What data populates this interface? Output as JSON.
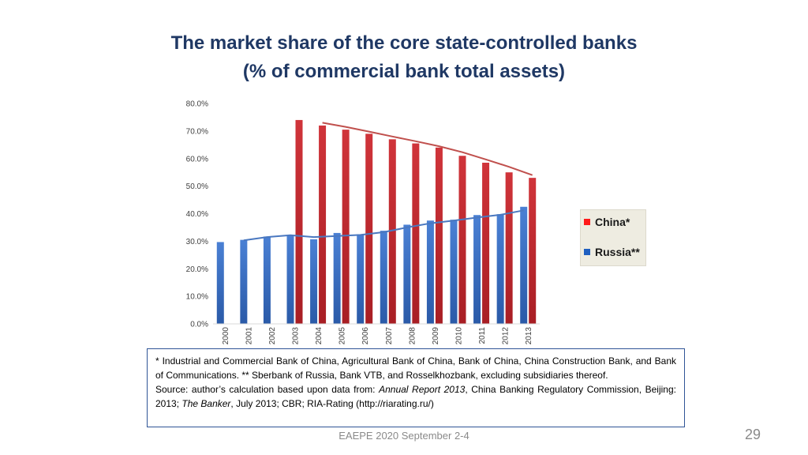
{
  "title": {
    "line1": "The market share of the core state-controlled banks",
    "line2": "(% of commercial bank total assets)"
  },
  "chart_data": {
    "type": "bar",
    "categories": [
      "2000",
      "2001",
      "2002",
      "2003",
      "2004",
      "2005",
      "2006",
      "2007",
      "2008",
      "2009",
      "2010",
      "2011",
      "2012",
      "2013"
    ],
    "series": [
      {
        "name": "Russia**",
        "color": "#3a6fc4",
        "values": [
          29.7,
          30.5,
          31.7,
          32.0,
          30.7,
          33.0,
          32.5,
          33.8,
          36.0,
          37.5,
          37.8,
          39.5,
          39.8,
          42.5
        ]
      },
      {
        "name": "China*",
        "color": "#c0282d",
        "values": [
          null,
          null,
          null,
          74.0,
          72.0,
          70.5,
          69.0,
          67.0,
          65.5,
          64.0,
          61.0,
          58.5,
          55.0,
          53.0
        ]
      }
    ],
    "trendlines": [
      {
        "series": "China*",
        "color": "#c0504d",
        "points": [
          [
            2004,
            73.0
          ],
          [
            2005,
            71.5
          ],
          [
            2006,
            69.8
          ],
          [
            2007,
            68.0
          ],
          [
            2008,
            66.3
          ],
          [
            2009,
            64.5
          ],
          [
            2010,
            62.3
          ],
          [
            2011,
            59.7
          ],
          [
            2012,
            57.0
          ],
          [
            2013,
            54.0
          ]
        ]
      },
      {
        "series": "Russia**",
        "color": "#4a78c0",
        "points": [
          [
            2001,
            30.3
          ],
          [
            2002,
            31.5
          ],
          [
            2003,
            32.2
          ],
          [
            2004,
            31.5
          ],
          [
            2005,
            31.9
          ],
          [
            2006,
            32.3
          ],
          [
            2007,
            33.3
          ],
          [
            2008,
            35.0
          ],
          [
            2009,
            36.5
          ],
          [
            2010,
            37.5
          ],
          [
            2011,
            38.6
          ],
          [
            2012,
            39.6
          ],
          [
            2013,
            41.2
          ]
        ]
      }
    ],
    "yticks": [
      "0.0%",
      "10.0%",
      "20.0%",
      "30.0%",
      "40.0%",
      "50.0%",
      "60.0%",
      "70.0%",
      "80.0%"
    ],
    "ylim": [
      0,
      80
    ],
    "legend": {
      "position": "right",
      "entries": [
        "China*",
        "Russia**"
      ]
    }
  },
  "legend": {
    "china_label": "China*",
    "russia_label": "Russia**",
    "china_color": "#ff1a1a",
    "russia_color": "#1f5fc0"
  },
  "note": {
    "line1": "* Industrial and Commercial Bank of China, Agricultural Bank of China, Bank of China, China Construction Bank, and Bank of Communications. ** Sberbank of Russia, Bank VTB, and Rosselkhozbank, excluding subsidiaries thereof.",
    "source_prefix": "Source: author’s calculation based upon data from: ",
    "source_report": "Annual Report 2013",
    "source_mid": ", China Banking Regulatory Commission, Beijing: 2013; ",
    "source_banker": "The Banker",
    "source_end": ", July 2013; CBR; RIA-Rating (http://riarating.ru/)"
  },
  "footer": {
    "text": "EAEPE 2020 September 2-4",
    "page_number": "29"
  }
}
